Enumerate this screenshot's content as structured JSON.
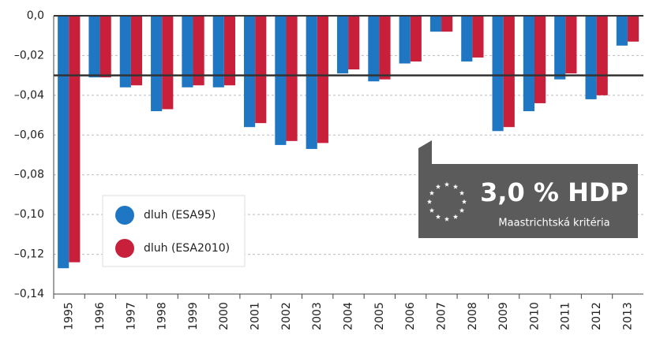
{
  "chart_data": {
    "type": "bar",
    "categories": [
      "1995",
      "1996",
      "1997",
      "1998",
      "1999",
      "2000",
      "2001",
      "2002",
      "2003",
      "2004",
      "2005",
      "2006",
      "2007",
      "2008",
      "2009",
      "2010",
      "2011",
      "2012",
      "2013"
    ],
    "series": [
      {
        "name": "dluh (ESA95)",
        "color": "#1f77c4",
        "values": [
          -0.127,
          -0.031,
          -0.036,
          -0.048,
          -0.036,
          -0.036,
          -0.056,
          -0.065,
          -0.067,
          -0.029,
          -0.033,
          -0.024,
          -0.008,
          -0.023,
          -0.058,
          -0.048,
          -0.032,
          -0.042,
          -0.015
        ]
      },
      {
        "name": "dluh (ESA2010)",
        "color": "#c8203a",
        "values": [
          -0.124,
          -0.031,
          -0.035,
          -0.047,
          -0.035,
          -0.035,
          -0.054,
          -0.063,
          -0.064,
          -0.027,
          -0.032,
          -0.023,
          -0.008,
          -0.021,
          -0.056,
          -0.044,
          -0.029,
          -0.04,
          -0.013
        ]
      }
    ],
    "ylim": [
      -0.14,
      0
    ],
    "yticks": [
      {
        "value": 0,
        "label": "0,0"
      },
      {
        "value": -0.02,
        "label": "–0,02"
      },
      {
        "value": -0.04,
        "label": "–0,04"
      },
      {
        "value": -0.06,
        "label": "–0,06"
      },
      {
        "value": -0.08,
        "label": "–0,08"
      },
      {
        "value": -0.1,
        "label": "–0,10"
      },
      {
        "value": -0.12,
        "label": "–0,12"
      },
      {
        "value": -0.14,
        "label": "–0,14"
      }
    ],
    "grid": true,
    "threshold": -0.03,
    "annotation": {
      "title": "3,0 % HDP",
      "subtitle": "Maastrichtská kritéria"
    }
  }
}
